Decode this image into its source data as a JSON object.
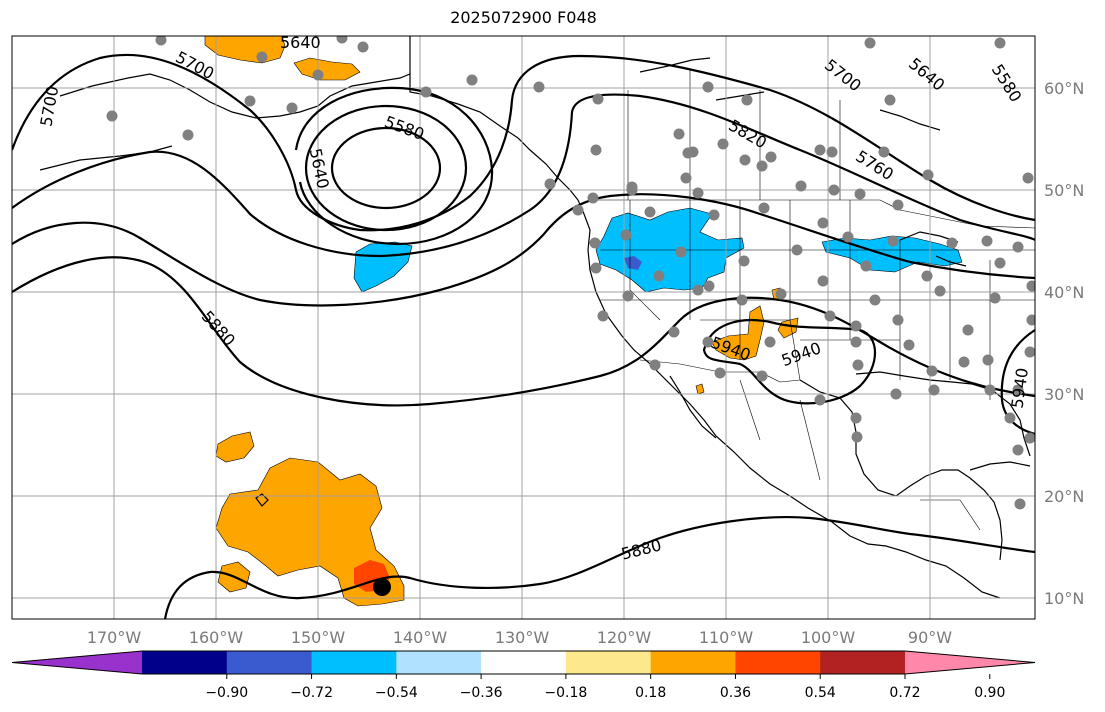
{
  "title": "2025072900 F048",
  "longitude_labels": [
    "170°W",
    "160°W",
    "150°W",
    "140°W",
    "130°W",
    "120°W",
    "110°W",
    "100°W",
    "90°W"
  ],
  "latitude_labels": [
    "60°N",
    "50°N",
    "40°N",
    "30°N",
    "20°N",
    "10°N"
  ],
  "contour_labels": [
    "5640",
    "5700",
    "5700",
    "5580",
    "5640",
    "5820",
    "5700",
    "5640",
    "5580",
    "5760",
    "5880",
    "5940",
    "5940",
    "5940",
    "5880"
  ],
  "colorbar": {
    "tick_labels": [
      "−0.90",
      "−0.72",
      "−0.54",
      "−0.36",
      "−0.18",
      "0.18",
      "0.36",
      "0.54",
      "0.72",
      "0.90"
    ],
    "colors": [
      "#9932cc",
      "#00008b",
      "#3a5bd0",
      "#00bfff",
      "#b0e2ff",
      "#ffffff",
      "#fde98c",
      "#ffa500",
      "#ff4500",
      "#b22222",
      "#ff88aa"
    ]
  },
  "colors": {
    "contour": "#000000",
    "grid": "#a0a0a0",
    "station_marker": "#808080",
    "tropical_center": "#000000"
  }
}
